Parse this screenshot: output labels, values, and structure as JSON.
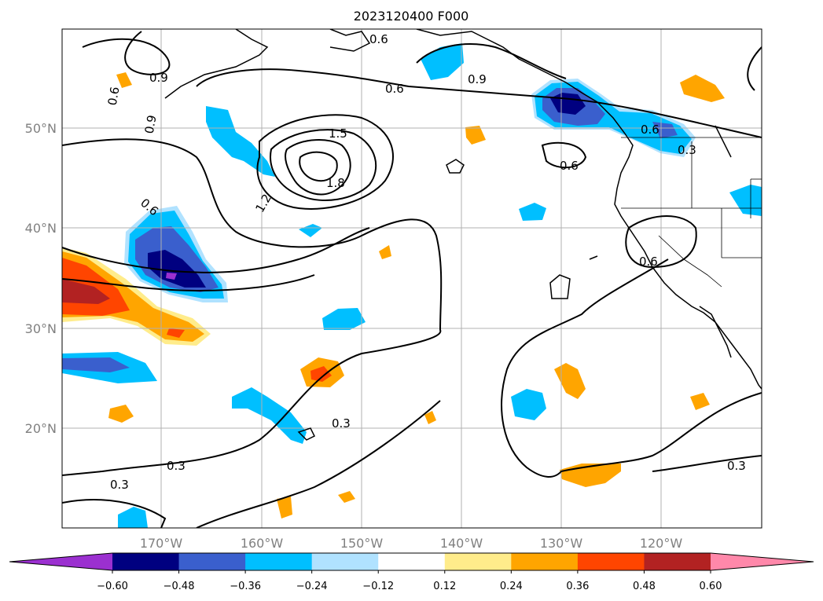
{
  "title": "2023120400 F000",
  "map": {
    "lon_labels": [
      "170°W",
      "160°W",
      "150°W",
      "140°W",
      "130°W",
      "120°W"
    ],
    "lat_labels": [
      "50°N",
      "40°N",
      "30°N",
      "20°N"
    ],
    "contour_labels": [
      "0.6",
      "0.9",
      "0.6",
      "0.9",
      "0.9",
      "0.6",
      "1.5",
      "1.8",
      "1.2",
      "0.6",
      "0.6",
      "0.6",
      "0.3",
      "0.6",
      "0.3",
      "0.3",
      "0.3",
      "0.3"
    ]
  },
  "colorbar": {
    "ticks": [
      "−0.60",
      "−0.48",
      "−0.36",
      "−0.24",
      "−0.12",
      "0.12",
      "0.24",
      "0.36",
      "0.48",
      "0.60"
    ],
    "colors": [
      "#9b30d0",
      "#000080",
      "#3a5fcd",
      "#00bfff",
      "#b0e2ff",
      "#ffffff",
      "#ffec8b",
      "#ffa500",
      "#ff4500",
      "#b22222",
      "#ff88aa"
    ]
  },
  "colors": {
    "c_m060": "#9b30d0",
    "c_m048": "#000080",
    "c_m036": "#3a5fcd",
    "c_m024": "#00bfff",
    "c_m012": "#b0e2ff",
    "c_p012": "#ffec8b",
    "c_p024": "#ffa500",
    "c_p036": "#ff4500",
    "c_p048": "#b22222"
  }
}
